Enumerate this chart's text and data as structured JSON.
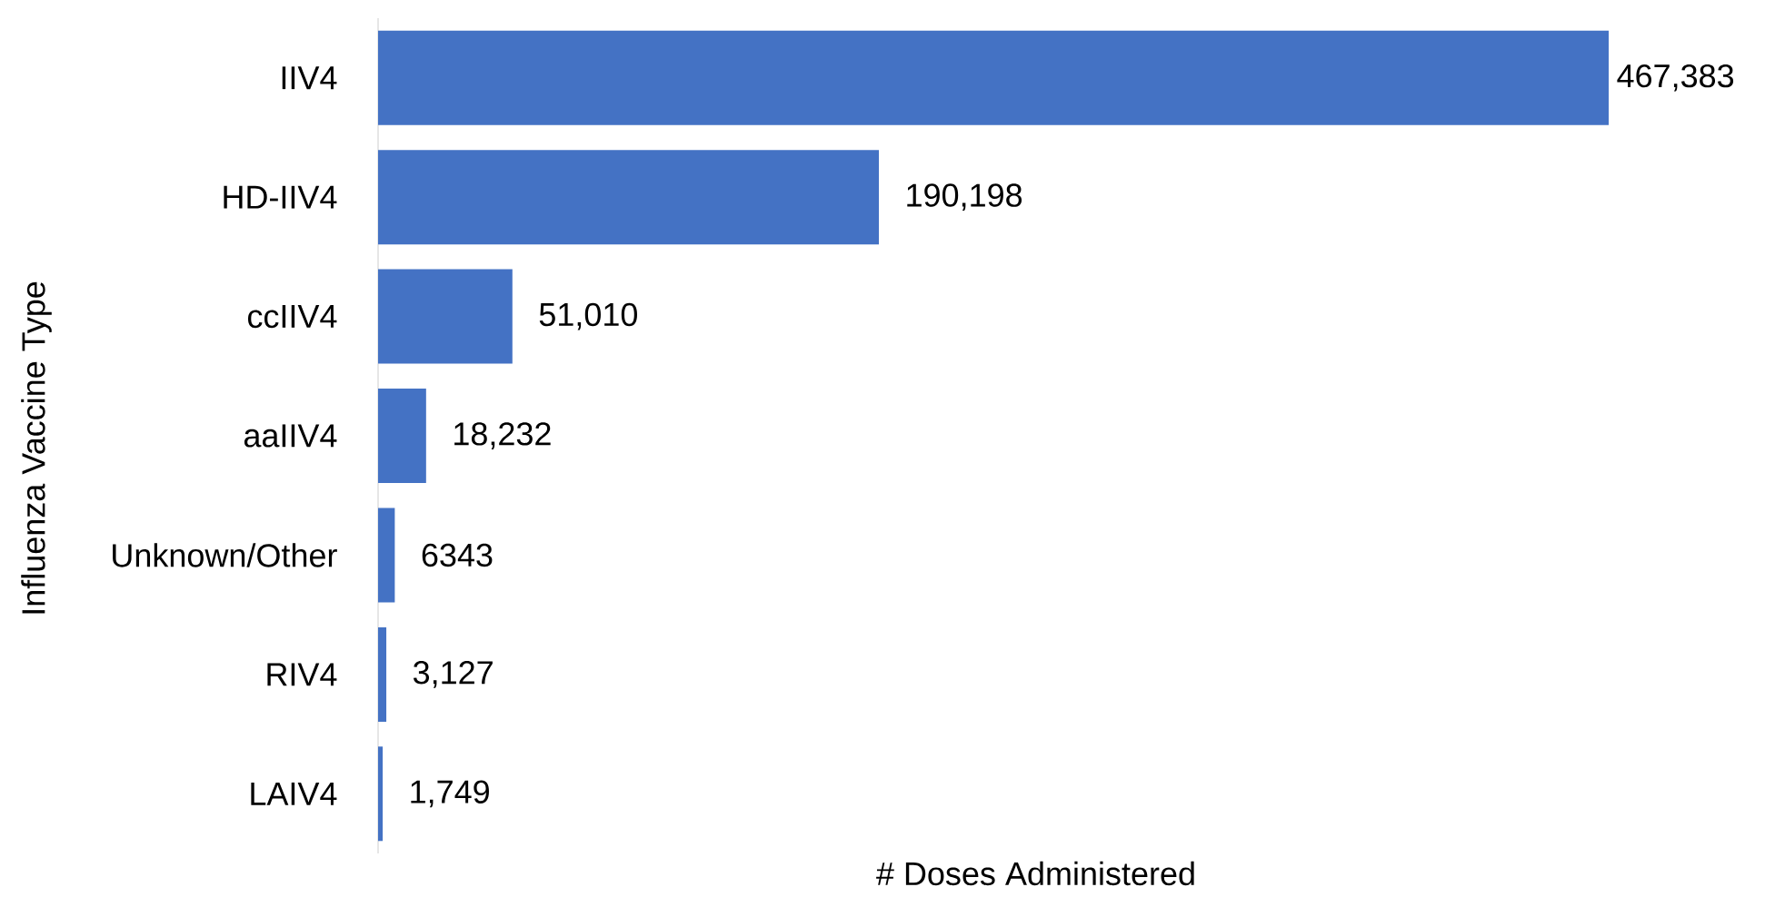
{
  "chart_data": {
    "type": "bar",
    "orientation": "horizontal",
    "categories": [
      "IIV4",
      "HD-IIV4",
      "ccIIV4",
      "aaIIV4",
      "Unknown/Other",
      "RIV4",
      "LAIV4"
    ],
    "values": [
      467383,
      190198,
      51010,
      18232,
      6343,
      3127,
      1749
    ],
    "value_labels": [
      "467,383",
      "190,198",
      "51,010",
      "18,232",
      "6343",
      "3,127",
      "1,749"
    ],
    "color": "#4472c4",
    "xlabel": "# Doses Administered",
    "ylabel": "Influenza Vaccine Type"
  }
}
